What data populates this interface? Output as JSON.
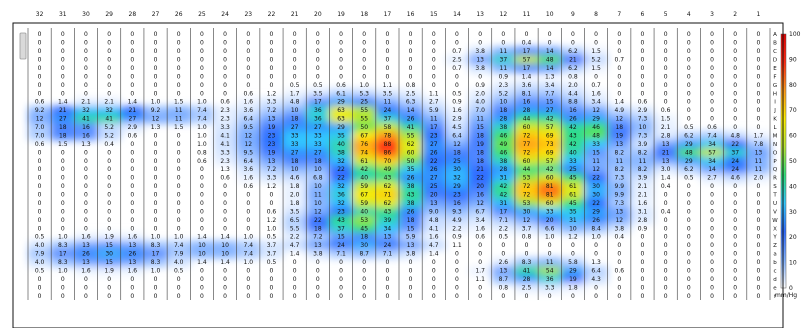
{
  "chart_data": {
    "type": "heatmap",
    "columns": [
      "32",
      "31",
      "30",
      "29",
      "28",
      "27",
      "26",
      "25",
      "24",
      "23",
      "22",
      "21",
      "20",
      "19",
      "18",
      "17",
      "16",
      "15",
      "14",
      "13",
      "12",
      "11",
      "10",
      "9",
      "8",
      "7",
      "6",
      "5",
      "4",
      "3",
      "2",
      "1"
    ],
    "rows": [
      "A",
      "B",
      "C",
      "D",
      "E",
      "F",
      "G",
      "H",
      "I",
      "J",
      "K",
      "L",
      "M",
      "N",
      "O",
      "P",
      "Q",
      "R",
      "S",
      "T",
      "U",
      "V",
      "W",
      "X",
      "Y",
      "Z",
      "a",
      "b",
      "c",
      "d",
      "e",
      "f"
    ],
    "blobs": [
      {
        "row": 9.6,
        "col": 29.5,
        "peak": 52,
        "rx": 2.2,
        "ry": 0.9
      },
      {
        "row": 11.5,
        "col": 30.6,
        "peak": 26,
        "rx": 1.4,
        "ry": 0.9
      },
      {
        "row": 9.5,
        "col": 26.0,
        "peak": 14,
        "rx": 1.6,
        "ry": 1.0
      },
      {
        "row": 12.5,
        "col": 20.5,
        "peak": 35,
        "rx": 2.4,
        "ry": 3.2
      },
      {
        "row": 9.5,
        "col": 18.7,
        "peak": 72,
        "rx": 1.7,
        "ry": 1.6
      },
      {
        "row": 13.3,
        "col": 17.2,
        "peak": 90,
        "rx": 2.0,
        "ry": 3.5
      },
      {
        "row": 19.0,
        "col": 17.4,
        "peak": 74,
        "rx": 1.9,
        "ry": 2.8
      },
      {
        "row": 22.3,
        "col": 18.1,
        "peak": 55,
        "rx": 2.0,
        "ry": 1.6
      },
      {
        "row": 25.0,
        "col": 18.0,
        "peak": 30,
        "rx": 2.2,
        "ry": 0.9
      },
      {
        "row": 16.8,
        "col": 14.2,
        "peak": 32,
        "rx": 2.0,
        "ry": 3.8
      },
      {
        "row": 3.0,
        "col": 10.8,
        "peak": 58,
        "rx": 1.8,
        "ry": 0.9
      },
      {
        "row": 13.0,
        "col": 10.6,
        "peak": 80,
        "rx": 2.0,
        "ry": 4.0
      },
      {
        "row": 18.5,
        "col": 10.2,
        "peak": 85,
        "rx": 2.2,
        "ry": 2.6
      },
      {
        "row": 11.6,
        "col": 8.4,
        "peak": 54,
        "rx": 1.4,
        "ry": 2.2
      },
      {
        "row": 21.4,
        "col": 8.8,
        "peak": 38,
        "rx": 1.8,
        "ry": 1.4
      },
      {
        "row": 28.3,
        "col": 10.2,
        "peak": 60,
        "rx": 1.5,
        "ry": 1.0
      },
      {
        "row": 14.0,
        "col": 3.2,
        "peak": 58,
        "rx": 1.8,
        "ry": 1.4
      },
      {
        "row": 15.5,
        "col": 2.1,
        "peak": 30,
        "rx": 1.2,
        "ry": 1.1
      },
      {
        "row": 26.0,
        "col": 29.0,
        "peak": 30,
        "rx": 2.6,
        "ry": 1.2
      },
      {
        "row": 25.5,
        "col": 24.5,
        "peak": 14,
        "rx": 2.4,
        "ry": 1.0
      },
      {
        "row": 15.0,
        "col": 6.5,
        "peak": 12,
        "rx": 1.4,
        "ry": 2.0
      },
      {
        "row": 11.0,
        "col": 6.0,
        "peak": 10,
        "rx": 0.8,
        "ry": 1.8
      }
    ],
    "color_scale": {
      "min": 0,
      "max": 100,
      "unit": "mm/Hg",
      "ticks": [
        "100",
        "90",
        "80",
        "70",
        "60",
        "50",
        "40",
        "30",
        "20",
        "10",
        "0"
      ],
      "stops": [
        "#ffffff",
        "#7fb0ff",
        "#2f6bff",
        "#33c9ff",
        "#2fe07a",
        "#b8e632",
        "#ffee00",
        "#ff9a1a",
        "#ff2a12",
        "#e00000"
      ]
    }
  }
}
